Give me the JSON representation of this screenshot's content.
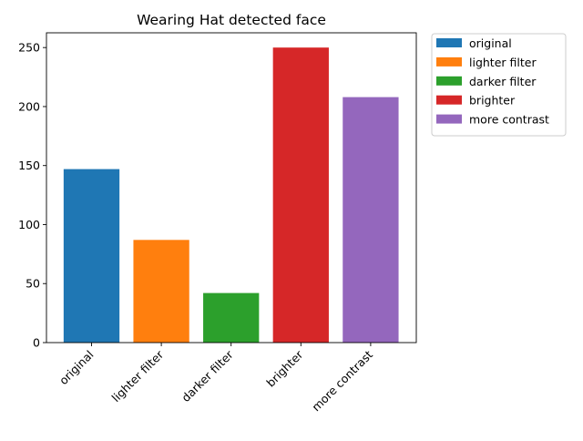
{
  "chart_data": {
    "type": "bar",
    "title": "Wearing Hat detected face",
    "xlabel": "",
    "ylabel": "",
    "categories": [
      "original",
      "lighter filter",
      "darker filter",
      "brighter",
      "more contrast"
    ],
    "values": [
      147,
      87,
      42,
      250,
      208
    ],
    "colors": [
      "#1f77b4",
      "#ff7f0e",
      "#2ca02c",
      "#d62728",
      "#9467bd"
    ],
    "ylim": [
      0,
      262.5
    ],
    "yticks": [
      0,
      50,
      100,
      150,
      200,
      250
    ],
    "ytick_labels": [
      "0",
      "50",
      "100",
      "150",
      "200",
      "250"
    ],
    "grid": false,
    "legend": {
      "placement": "outside-top-right",
      "entries": [
        "original",
        "lighter filter",
        "darker filter",
        "brighter",
        "more contrast"
      ]
    }
  }
}
